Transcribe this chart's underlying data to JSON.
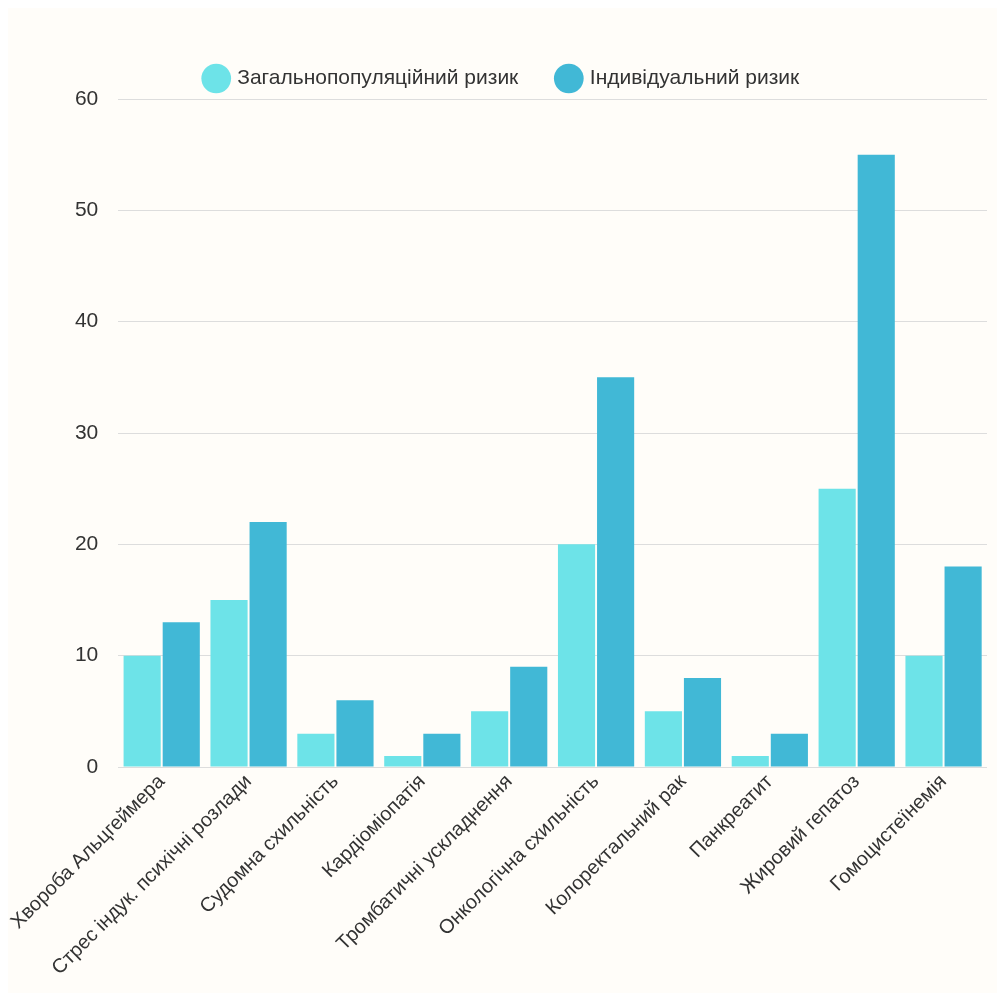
{
  "chart_data": {
    "type": "bar",
    "categories": [
      "Хвороба Альцгеймера",
      "Стрес індук. психічні розлади",
      "Судомна схильність",
      "Кардіоміопатія",
      "Тромбатичні ускладнення",
      "Онкологічна схильність",
      "Колоректальний рак",
      "Панкреатит",
      "Жировий гепатоз",
      "Гомоцистеїнемія"
    ],
    "series": [
      {
        "name": "Загальнопопуляційний ризик",
        "color": "#6de3e8",
        "values": [
          10,
          15,
          3,
          1,
          5,
          20,
          5,
          1,
          25,
          10
        ]
      },
      {
        "name": "Індивідуальний ризик",
        "color": "#41b8d6",
        "values": [
          13,
          22,
          6,
          3,
          9,
          35,
          8,
          3,
          55,
          18
        ]
      }
    ],
    "ylim": [
      0,
      60
    ],
    "yticks": [
      0,
      10,
      20,
      30,
      40,
      50,
      60
    ],
    "grid": "y",
    "legend": "top"
  }
}
